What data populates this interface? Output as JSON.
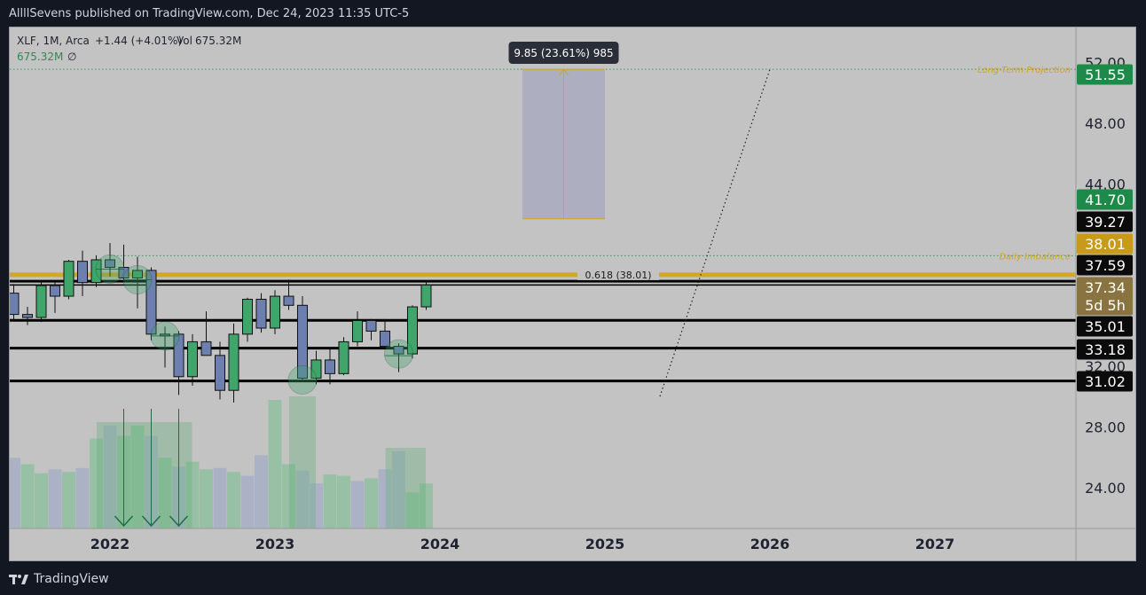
{
  "header": {
    "publish_line": "AllllSevens published on TradingView.com, Dec 24, 2023 11:35 UTC-5"
  },
  "footer": {
    "brand": "TradingView",
    "logo_mark": "TV"
  },
  "legend": {
    "symbol_line": "XLF, 1M, Arca",
    "change": "+1.44 (+4.01%)",
    "volume_label": "Vol",
    "volume_value": "675.32M",
    "volume_line2": "675.32M",
    "volume_line2_symbol": "∅"
  },
  "measure": {
    "label": "9.85 (23.61%) 985"
  },
  "annotations": {
    "long_term": "Long-Term Projection",
    "daily_imbalance": "Daily Imbalance",
    "fib": "0.618 (38.01)"
  },
  "colors": {
    "up": "#3fa56b",
    "down": "#6d7fae",
    "gold": "#d6a416",
    "green_badge": "#1e8a4a",
    "black_badge": "#0b0b0b",
    "gold_badge": "#c89a1a",
    "brown_badge": "#897340"
  },
  "chart_data": {
    "type": "candlestick",
    "title": "",
    "symbol": "XLF",
    "interval": "1M",
    "exchange": "Arca",
    "x_ticks": [
      "2022",
      "2023",
      "2024",
      "2025",
      "2026",
      "2027"
    ],
    "y_ticks": [
      "24.00",
      "28.00",
      "32.00",
      "44.00",
      "48.00",
      "52.00"
    ],
    "ylim": [
      21.3,
      54.3
    ],
    "price_badges": [
      {
        "value": "51.55",
        "kind": "green"
      },
      {
        "value": "41.70",
        "kind": "green"
      },
      {
        "value": "39.27",
        "kind": "black"
      },
      {
        "value": "38.01",
        "kind": "gold"
      },
      {
        "value": "37.59",
        "kind": "black"
      },
      {
        "value": "37.34",
        "kind": "brown"
      },
      {
        "value": "5d 5h",
        "kind": "brown"
      },
      {
        "value": "35.01",
        "kind": "black"
      },
      {
        "value": "33.18",
        "kind": "black"
      },
      {
        "value": "31.02",
        "kind": "black"
      }
    ],
    "horizontal_levels": [
      {
        "price": 37.59,
        "style": "black"
      },
      {
        "price": 37.34,
        "style": "black-thin"
      },
      {
        "price": 35.01,
        "style": "black"
      },
      {
        "price": 33.18,
        "style": "black"
      },
      {
        "price": 31.02,
        "style": "black"
      },
      {
        "price": 38.01,
        "style": "gold"
      }
    ],
    "dotted_levels": [
      {
        "price": 51.55,
        "label_key": "long_term"
      },
      {
        "price": 39.27,
        "label_key": "daily_imbalance"
      }
    ],
    "measure_box": {
      "low": 41.7,
      "high": 51.55,
      "change": 9.85,
      "percent": 23.61,
      "bars": 985,
      "start_month": "2024-07",
      "end_month": "2025-01"
    },
    "projection_line": {
      "from": [
        "2025-05",
        30.0
      ],
      "to": [
        "2026-01",
        51.55
      ]
    },
    "candles": [
      {
        "t": "2021-06",
        "o": 36.8,
        "h": 37.4,
        "l": 35.0,
        "c": 35.4
      },
      {
        "t": "2021-07",
        "o": 35.4,
        "h": 35.9,
        "l": 34.7,
        "c": 35.2
      },
      {
        "t": "2021-08",
        "o": 35.2,
        "h": 37.5,
        "l": 34.9,
        "c": 37.3
      },
      {
        "t": "2021-09",
        "o": 37.3,
        "h": 37.6,
        "l": 35.5,
        "c": 36.6
      },
      {
        "t": "2021-10",
        "o": 36.6,
        "h": 39.0,
        "l": 36.4,
        "c": 38.9
      },
      {
        "t": "2021-11",
        "o": 38.9,
        "h": 39.6,
        "l": 36.6,
        "c": 37.5
      },
      {
        "t": "2021-12",
        "o": 37.5,
        "h": 39.3,
        "l": 37.2,
        "c": 39.0
      },
      {
        "t": "2022-01",
        "o": 39.0,
        "h": 40.1,
        "l": 37.9,
        "c": 38.5
      },
      {
        "t": "2022-02",
        "o": 38.5,
        "h": 40.0,
        "l": 37.5,
        "c": 37.8
      },
      {
        "t": "2022-03",
        "o": 37.8,
        "h": 39.2,
        "l": 35.8,
        "c": 38.3
      },
      {
        "t": "2022-04",
        "o": 38.3,
        "h": 38.5,
        "l": 33.7,
        "c": 34.1
      },
      {
        "t": "2022-05",
        "o": 34.1,
        "h": 34.6,
        "l": 31.9,
        "c": 34.1
      },
      {
        "t": "2022-06",
        "o": 34.1,
        "h": 34.3,
        "l": 30.1,
        "c": 31.3
      },
      {
        "t": "2022-07",
        "o": 31.3,
        "h": 34.1,
        "l": 30.7,
        "c": 33.6
      },
      {
        "t": "2022-08",
        "o": 33.6,
        "h": 35.6,
        "l": 32.9,
        "c": 32.7
      },
      {
        "t": "2022-09",
        "o": 32.7,
        "h": 33.6,
        "l": 29.8,
        "c": 30.4
      },
      {
        "t": "2022-10",
        "o": 30.4,
        "h": 34.8,
        "l": 29.6,
        "c": 34.1
      },
      {
        "t": "2022-11",
        "o": 34.1,
        "h": 36.5,
        "l": 33.6,
        "c": 36.4
      },
      {
        "t": "2022-12",
        "o": 36.4,
        "h": 36.8,
        "l": 34.2,
        "c": 34.5
      },
      {
        "t": "2023-01",
        "o": 34.5,
        "h": 37.0,
        "l": 34.1,
        "c": 36.6
      },
      {
        "t": "2023-02",
        "o": 36.6,
        "h": 37.7,
        "l": 35.7,
        "c": 36.0
      },
      {
        "t": "2023-03",
        "o": 36.0,
        "h": 36.6,
        "l": 31.0,
        "c": 31.2
      },
      {
        "t": "2023-04",
        "o": 31.2,
        "h": 33.0,
        "l": 30.8,
        "c": 32.4
      },
      {
        "t": "2023-05",
        "o": 32.4,
        "h": 33.2,
        "l": 30.8,
        "c": 31.5
      },
      {
        "t": "2023-06",
        "o": 31.5,
        "h": 33.9,
        "l": 31.4,
        "c": 33.6
      },
      {
        "t": "2023-07",
        "o": 33.6,
        "h": 35.6,
        "l": 33.3,
        "c": 35.0
      },
      {
        "t": "2023-08",
        "o": 35.0,
        "h": 35.1,
        "l": 33.7,
        "c": 34.3
      },
      {
        "t": "2023-09",
        "o": 34.3,
        "h": 35.1,
        "l": 33.3,
        "c": 33.3
      },
      {
        "t": "2023-10",
        "o": 33.3,
        "h": 33.5,
        "l": 31.6,
        "c": 32.8
      },
      {
        "t": "2023-11",
        "o": 32.8,
        "h": 36.0,
        "l": 32.5,
        "c": 35.9
      },
      {
        "t": "2023-12",
        "o": 35.9,
        "h": 37.6,
        "l": 35.7,
        "c": 37.34
      }
    ],
    "volume_relative": [
      0.55,
      0.5,
      0.43,
      0.46,
      0.44,
      0.47,
      0.7,
      0.8,
      0.72,
      0.8,
      0.72,
      0.55,
      0.48,
      0.52,
      0.46,
      0.47,
      0.44,
      0.41,
      0.57,
      1.0,
      0.5,
      0.45,
      0.35,
      0.42,
      0.41,
      0.37,
      0.39,
      0.46,
      0.6,
      0.28,
      0.35
    ],
    "volume_bar_colors": [
      "down",
      "up",
      "up",
      "down",
      "up",
      "down",
      "up",
      "down",
      "up",
      "up",
      "down",
      "up",
      "down",
      "up",
      "up",
      "down",
      "up",
      "down",
      "down",
      "up",
      "up",
      "down",
      "down",
      "up",
      "up",
      "down",
      "up",
      "down",
      "down",
      "up",
      "up"
    ],
    "circle_markers": [
      "2022-01",
      "2022-03",
      "2022-05",
      "2023-03",
      "2023-10"
    ],
    "arrow_markers": [
      "2022-02",
      "2022-04",
      "2022-06"
    ]
  }
}
